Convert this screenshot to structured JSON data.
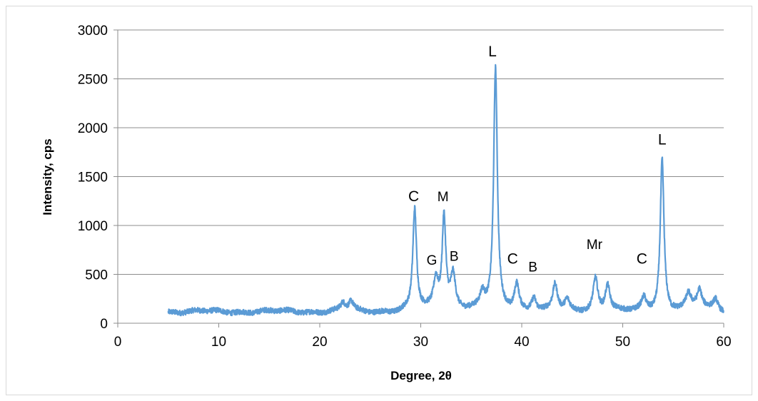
{
  "chart_data": {
    "type": "line",
    "title": "",
    "xlabel": "Degree, 2θ",
    "ylabel": "Intensity, cps",
    "xlim": [
      0,
      60
    ],
    "ylim": [
      0,
      3000
    ],
    "x_ticks": [
      0,
      10,
      20,
      30,
      40,
      50,
      60
    ],
    "y_ticks": [
      0,
      500,
      1000,
      1500,
      2000,
      2500,
      3000
    ],
    "grid": "horizontal",
    "legend": "none",
    "series_color": "#5b9bd5",
    "baseline": 120,
    "x_range": [
      5,
      60
    ],
    "peaks": [
      {
        "x": 22.3,
        "y": 200
      },
      {
        "x": 23.1,
        "y": 215
      },
      {
        "x": 29.4,
        "y": 1150
      },
      {
        "x": 31.5,
        "y": 410
      },
      {
        "x": 32.3,
        "y": 1060
      },
      {
        "x": 33.2,
        "y": 460
      },
      {
        "x": 36.1,
        "y": 270
      },
      {
        "x": 37.4,
        "y": 2580
      },
      {
        "x": 39.5,
        "y": 400
      },
      {
        "x": 41.2,
        "y": 260
      },
      {
        "x": 43.3,
        "y": 390
      },
      {
        "x": 44.5,
        "y": 225
      },
      {
        "x": 47.3,
        "y": 460
      },
      {
        "x": 48.5,
        "y": 390
      },
      {
        "x": 52.1,
        "y": 250
      },
      {
        "x": 53.9,
        "y": 1680
      },
      {
        "x": 56.5,
        "y": 250
      },
      {
        "x": 57.6,
        "y": 300
      },
      {
        "x": 59.2,
        "y": 230
      }
    ],
    "annotations": [
      {
        "text": "C",
        "x": 29.3,
        "y": 1250
      },
      {
        "text": "M",
        "x": 32.2,
        "y": 1250
      },
      {
        "text": "G",
        "x": 31.1,
        "y": 600
      },
      {
        "text": "B",
        "x": 33.3,
        "y": 640
      },
      {
        "text": "L",
        "x": 37.1,
        "y": 2730
      },
      {
        "text": "C",
        "x": 39.1,
        "y": 610
      },
      {
        "text": "B",
        "x": 41.1,
        "y": 530
      },
      {
        "text": "Mr",
        "x": 47.2,
        "y": 760
      },
      {
        "text": "C",
        "x": 51.9,
        "y": 610
      },
      {
        "text": "L",
        "x": 53.9,
        "y": 1830
      }
    ]
  }
}
